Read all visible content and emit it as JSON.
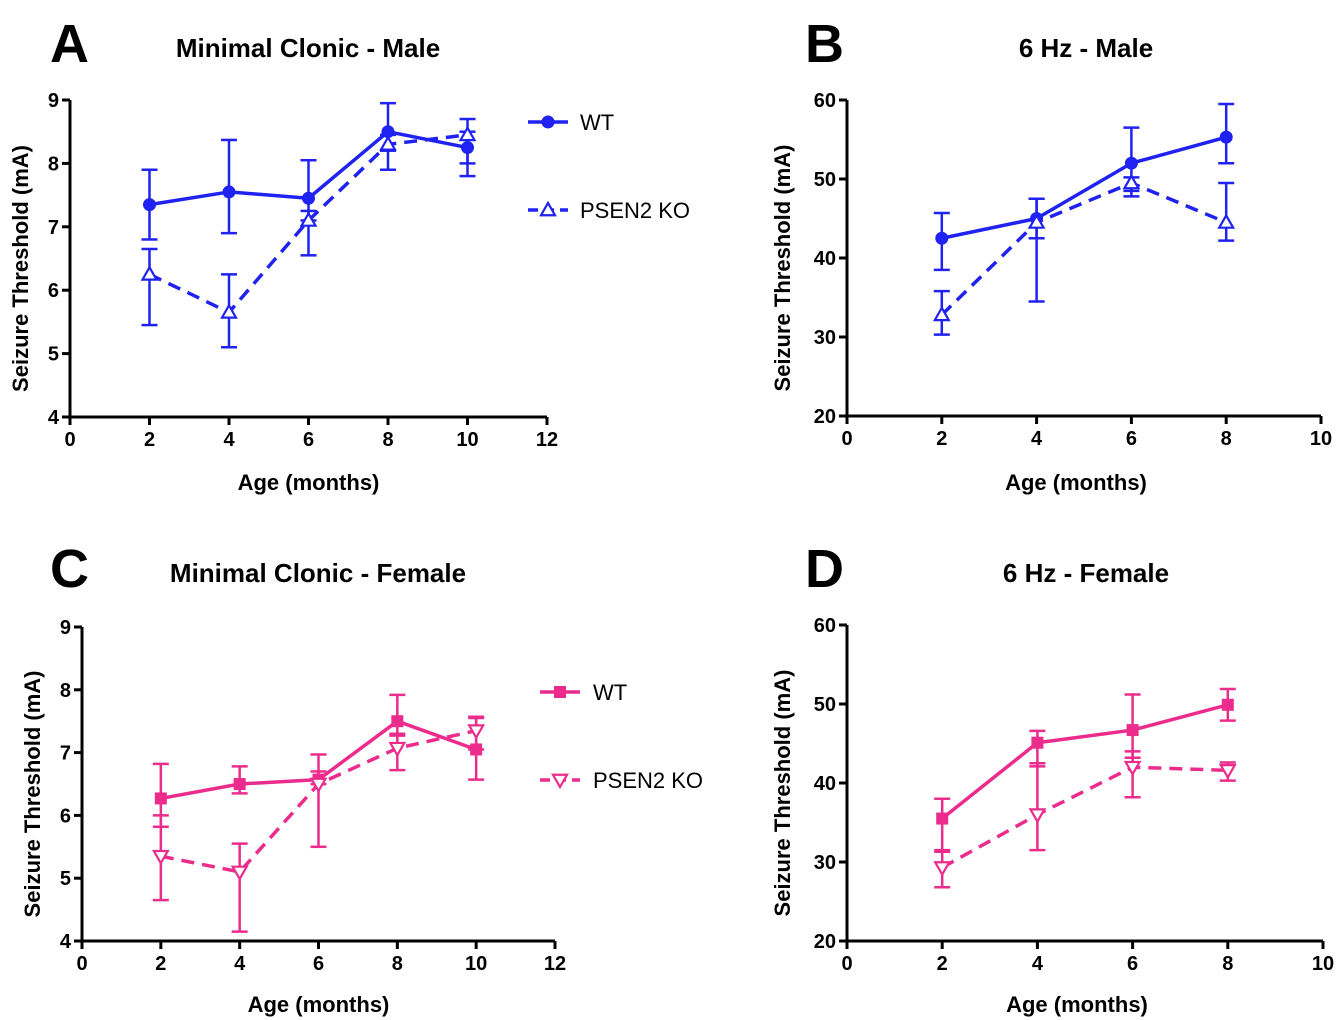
{
  "figure": {
    "colors": {
      "male": "#1f22f0",
      "female": "#ec2c8c"
    },
    "panels": [
      {
        "letter": "A",
        "title": "Minimal Clonic - Male",
        "xlabel": "Age (months)",
        "ylabel": "Seizure Threshold (mA)",
        "legend": [
          "WT",
          "PSEN2 KO"
        ]
      },
      {
        "letter": "B",
        "title": "6 Hz - Male",
        "xlabel": "Age (months)",
        "ylabel": "Seizure Threshold (mA)",
        "legend": []
      },
      {
        "letter": "C",
        "title": "Minimal Clonic - Female",
        "xlabel": "Age (months)",
        "ylabel": "Seizure Threshold (mA)",
        "legend": [
          "WT",
          "PSEN2 KO"
        ]
      },
      {
        "letter": "D",
        "title": "6 Hz - Female",
        "xlabel": "Age (months)",
        "ylabel": "Seizure Threshold (mA)",
        "legend": []
      }
    ]
  },
  "chart_data": [
    {
      "type": "line",
      "title": "Minimal Clonic - Male",
      "xlabel": "Age (months)",
      "ylabel": "Seizure Threshold (mA)",
      "xlim": [
        0,
        12
      ],
      "ylim": [
        4,
        9
      ],
      "xticks": [
        0,
        2,
        4,
        6,
        8,
        10,
        12
      ],
      "yticks": [
        4,
        5,
        6,
        7,
        8,
        9
      ],
      "color": "#1f22f0",
      "legend_position": "right",
      "series": [
        {
          "name": "WT",
          "marker": "circle",
          "line": "solid",
          "x": [
            2,
            4,
            6,
            8,
            10
          ],
          "y": [
            7.35,
            7.55,
            7.45,
            8.5,
            8.25
          ],
          "err_low": [
            0.55,
            0.65,
            0.35,
            0.3,
            0.25
          ],
          "err_high": [
            0.55,
            0.82,
            0.6,
            0.45,
            0.25
          ]
        },
        {
          "name": "PSEN2 KO",
          "marker": "triangle-up",
          "line": "dashed",
          "x": [
            2,
            4,
            6,
            8,
            10
          ],
          "y": [
            6.25,
            5.65,
            7.1,
            8.3,
            8.45
          ],
          "err_low": [
            0.8,
            0.55,
            0.55,
            0.4,
            0.65
          ],
          "err_high": [
            0.4,
            0.6,
            0.15,
            0.15,
            0.25
          ]
        }
      ]
    },
    {
      "type": "line",
      "title": "6 Hz - Male",
      "xlabel": "Age (months)",
      "ylabel": "Seizure Threshold (mA)",
      "xlim": [
        0,
        10
      ],
      "ylim": [
        20,
        60
      ],
      "xticks": [
        0,
        2,
        4,
        6,
        8,
        10
      ],
      "yticks": [
        20,
        30,
        40,
        50,
        60
      ],
      "color": "#1f22f0",
      "series": [
        {
          "name": "WT",
          "marker": "circle",
          "line": "solid",
          "x": [
            2,
            4,
            6,
            8
          ],
          "y": [
            42.5,
            45,
            52,
            55.3
          ],
          "err_low": [
            4,
            2.5,
            3.5,
            3.3
          ],
          "err_high": [
            3.2,
            2.5,
            4.5,
            4.2
          ]
        },
        {
          "name": "PSEN2 KO",
          "marker": "triangle-up",
          "line": "dashed",
          "x": [
            2,
            4,
            6,
            8
          ],
          "y": [
            32.8,
            44.5,
            49.5,
            44.5
          ],
          "err_low": [
            2.5,
            10,
            1.7,
            2.3
          ],
          "err_high": [
            3,
            3,
            0.7,
            5
          ]
        }
      ]
    },
    {
      "type": "line",
      "title": "Minimal Clonic - Female",
      "xlabel": "Age (months)",
      "ylabel": "Seizure Threshold (mA)",
      "xlim": [
        0,
        12
      ],
      "ylim": [
        4,
        9
      ],
      "xticks": [
        0,
        2,
        4,
        6,
        8,
        10,
        12
      ],
      "yticks": [
        4,
        5,
        6,
        7,
        8,
        9
      ],
      "color": "#ec2c8c",
      "legend_position": "right",
      "series": [
        {
          "name": "WT",
          "marker": "square",
          "line": "solid",
          "x": [
            2,
            4,
            6,
            8,
            10
          ],
          "y": [
            6.27,
            6.5,
            6.57,
            7.5,
            7.05
          ],
          "err_low": [
            0.45,
            0.15,
            0.07,
            0.2,
            0.0
          ],
          "err_high": [
            0.55,
            0.28,
            0.4,
            0.42,
            0.5
          ]
        },
        {
          "name": "PSEN2 KO",
          "marker": "triangle-down",
          "line": "dashed",
          "x": [
            2,
            4,
            6,
            8,
            10
          ],
          "y": [
            5.35,
            5.1,
            6.5,
            7.07,
            7.35
          ],
          "err_low": [
            0.7,
            0.95,
            1.0,
            0.35,
            0.78
          ],
          "err_high": [
            0.65,
            0.45,
            0.2,
            0.2,
            0.22
          ]
        }
      ]
    },
    {
      "type": "line",
      "title": "6 Hz - Female",
      "xlabel": "Age (months)",
      "ylabel": "Seizure Threshold (mA)",
      "xlim": [
        0,
        10
      ],
      "ylim": [
        20,
        60
      ],
      "xticks": [
        0,
        2,
        4,
        6,
        8,
        10
      ],
      "yticks": [
        20,
        30,
        40,
        50,
        60
      ],
      "color": "#ec2c8c",
      "series": [
        {
          "name": "WT",
          "marker": "square",
          "line": "solid",
          "x": [
            2,
            4,
            6,
            8
          ],
          "y": [
            35.5,
            45.1,
            46.7,
            49.9
          ],
          "err_low": [
            4,
            3,
            3.5,
            2
          ],
          "err_high": [
            2.5,
            1.5,
            4.5,
            2
          ]
        },
        {
          "name": "PSEN2 KO",
          "marker": "triangle-down",
          "line": "dashed",
          "x": [
            2,
            4,
            6,
            8
          ],
          "y": [
            29.3,
            36,
            42,
            41.6
          ],
          "err_low": [
            2.5,
            4.5,
            3.8,
            1.3
          ],
          "err_high": [
            2,
            6.5,
            2,
            1
          ]
        }
      ]
    }
  ]
}
